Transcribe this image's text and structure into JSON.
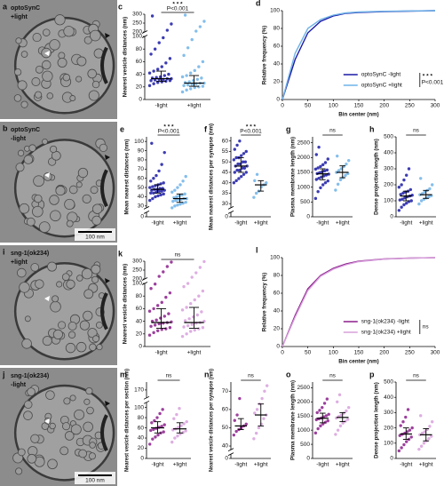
{
  "images": [
    {
      "panel": "a",
      "label": "optoSynC",
      "condition": "+light"
    },
    {
      "panel": "b",
      "label": "optoSynC",
      "condition": "-light",
      "scale_bar": "100 nm"
    },
    {
      "panel": "i",
      "label": "sng-1(ok234)",
      "condition": "+light"
    },
    {
      "panel": "j",
      "label": "sng-1(ok234)",
      "condition": "-light",
      "scale_bar": "100 nm"
    }
  ],
  "chart_data": [
    {
      "type": "dot",
      "panel": "c",
      "y_label": "Nearest vesicle distances (nm)",
      "categories": [
        "-light",
        "+light"
      ],
      "colors": [
        "#1a1aa6",
        "#6fb3e8"
      ],
      "values": [
        [
          22,
          25,
          27,
          28,
          29,
          30,
          30,
          31,
          32,
          32,
          33,
          33,
          34,
          35,
          36,
          38,
          40,
          42,
          45,
          48,
          52,
          58,
          65,
          72,
          80,
          90,
          98,
          210,
          245,
          290
        ],
        [
          12,
          15,
          17,
          19,
          20,
          21,
          22,
          23,
          24,
          25,
          26,
          26,
          27,
          28,
          30,
          32,
          34,
          36,
          38,
          42,
          46,
          52,
          60,
          70,
          82,
          95,
          205,
          230,
          260,
          295
        ]
      ],
      "median": [
        33,
        26
      ],
      "q1": [
        29,
        21
      ],
      "q3": [
        45,
        38
      ],
      "ylim": [
        0,
        300
      ],
      "ybreak": [
        100,
        200
      ],
      "yticks": [
        0,
        20,
        40,
        60,
        80,
        100,
        200,
        250,
        300
      ],
      "annotation": "P<0.001",
      "stars": "* * *"
    },
    {
      "type": "line",
      "panel": "d",
      "x_label": "Bin center (nm)",
      "y_label": "Relative frequency (%)",
      "x": [
        0,
        25,
        50,
        75,
        100,
        125,
        150,
        200,
        250,
        300
      ],
      "series": [
        {
          "name": "optoSynC -light",
          "color": "#1a1aa6",
          "values": [
            0,
            45,
            75,
            88,
            94,
            97,
            98,
            99,
            99.5,
            100
          ]
        },
        {
          "name": "optoSynC +light",
          "color": "#6fb3e8",
          "values": [
            0,
            52,
            80,
            90,
            95,
            97.5,
            98.5,
            99.3,
            99.7,
            100
          ]
        }
      ],
      "xlim": [
        0,
        300
      ],
      "xticks": [
        0,
        50,
        100,
        150,
        200,
        250,
        300
      ],
      "ylim": [
        0,
        100
      ],
      "yticks": [
        0,
        20,
        40,
        60,
        80,
        100
      ],
      "legend": "lower right",
      "annotation": "P<0.001",
      "stars": "* * *"
    },
    {
      "type": "dot",
      "panel": "e",
      "y_label": "Mean nearest distances (nm)",
      "categories": [
        "-light",
        "+light"
      ],
      "colors": [
        "#1a1aa6",
        "#6fb3e8"
      ],
      "values": [
        [
          36,
          38,
          40,
          41,
          42,
          43,
          44,
          44,
          45,
          46,
          46,
          47,
          47,
          48,
          48,
          49,
          49,
          50,
          51,
          52,
          53,
          54,
          55,
          57,
          60,
          63,
          68,
          75,
          88,
          98
        ],
        [
          28,
          30,
          31,
          32,
          33,
          34,
          35,
          36,
          37,
          37,
          38,
          38,
          39,
          40,
          41,
          42,
          43,
          45,
          47,
          50,
          53,
          57,
          62
        ]
      ],
      "median": [
        48,
        38
      ],
      "q1": [
        44,
        34
      ],
      "q3": [
        53,
        43
      ],
      "ylim": [
        0,
        105
      ],
      "ybreak": [
        0,
        28
      ],
      "yticks": [
        0,
        30,
        40,
        50,
        60,
        70,
        80,
        90,
        100
      ],
      "annotation": "P<0.001",
      "stars": "* * *"
    },
    {
      "type": "dot",
      "panel": "f",
      "y_label": "Mean nearest distances per synapse (nm)",
      "categories": [
        "-light",
        "+light"
      ],
      "colors": [
        "#1a1aa6",
        "#6fb3e8"
      ],
      "values": [
        [
          40,
          41,
          42,
          43,
          44,
          45,
          45,
          46,
          46,
          47,
          47,
          48,
          48,
          49,
          49,
          50,
          50,
          51,
          52,
          52,
          53,
          54,
          55,
          56,
          58,
          60
        ],
        [
          33,
          35,
          36,
          38,
          39,
          40,
          41,
          44
        ]
      ],
      "median": [
        48,
        39
      ],
      "q1": [
        45,
        36
      ],
      "q3": [
        52,
        41
      ],
      "ylim": [
        0,
        62
      ],
      "ybreak": [
        0,
        28
      ],
      "yticks": [
        0,
        30,
        35,
        40,
        45,
        50,
        55,
        60
      ],
      "annotation": "P<0.001",
      "stars": "* * *"
    },
    {
      "type": "dot",
      "panel": "g",
      "y_label": "Plasma membrane length (nm)",
      "categories": [
        "-light",
        "+light"
      ],
      "colors": [
        "#1a1aa6",
        "#6fb3e8"
      ],
      "values": [
        [
          620,
          850,
          980,
          1080,
          1150,
          1210,
          1260,
          1300,
          1340,
          1380,
          1410,
          1440,
          1460,
          1490,
          1520,
          1550,
          1580,
          1610,
          1650,
          1700,
          1760,
          1830,
          1950,
          2100,
          2350
        ],
        [
          900,
          1100,
          1250,
          1320,
          1400,
          1460,
          1500,
          1560,
          1620,
          1700,
          1780,
          1900,
          2050
        ]
      ],
      "median": [
        1450,
        1500
      ],
      "q1": [
        1250,
        1320
      ],
      "q3": [
        1620,
        1720
      ],
      "ylim": [
        0,
        2700
      ],
      "yticks": [
        0,
        500,
        1000,
        1500,
        2000,
        2500
      ],
      "annotation": "ns"
    },
    {
      "type": "dot",
      "panel": "h",
      "y_label": "Dense projection length (nm)",
      "categories": [
        "-light",
        "+light"
      ],
      "colors": [
        "#1a1aa6",
        "#6fb3e8"
      ],
      "values": [
        [
          40,
          60,
          75,
          85,
          95,
          100,
          105,
          110,
          118,
          125,
          130,
          135,
          140,
          148,
          155,
          160,
          170,
          185,
          200,
          230,
          260,
          300
        ],
        [
          80,
          100,
          110,
          118,
          125,
          132,
          138,
          145,
          155,
          165,
          175,
          200,
          240
        ]
      ],
      "median": [
        130,
        138
      ],
      "q1": [
        100,
        115
      ],
      "q3": [
        160,
        165
      ],
      "ylim": [
        0,
        500
      ],
      "yticks": [
        0,
        100,
        200,
        300,
        400,
        500
      ],
      "annotation": "ns"
    },
    {
      "type": "dot",
      "panel": "k",
      "y_label": "Nearest vesicle distances (nm)",
      "categories": [
        "-light",
        "+light"
      ],
      "colors": [
        "#8b1f8b",
        "#d7a0dc"
      ],
      "values": [
        [
          18,
          22,
          25,
          27,
          28,
          30,
          32,
          34,
          36,
          37,
          38,
          39,
          40,
          42,
          45,
          48,
          52,
          56,
          60,
          65,
          70,
          78,
          85,
          92,
          99,
          215,
          240,
          270,
          295
        ],
        [
          16,
          20,
          24,
          26,
          28,
          30,
          31,
          33,
          35,
          37,
          38,
          40,
          41,
          44,
          47,
          50,
          55,
          58,
          62,
          68,
          74,
          80,
          88,
          95,
          100,
          210,
          235,
          265,
          298
        ]
      ],
      "median": [
        38,
        38
      ],
      "q1": [
        29,
        29
      ],
      "q3": [
        60,
        62
      ],
      "ylim": [
        0,
        300
      ],
      "ybreak": [
        100,
        200
      ],
      "yticks": [
        0,
        20,
        40,
        60,
        80,
        100,
        200,
        250,
        300
      ],
      "annotation": "ns"
    },
    {
      "type": "line",
      "panel": "l",
      "x_label": "Bin center (nm)",
      "y_label": "Relative frequency (%)",
      "x": [
        0,
        25,
        50,
        75,
        100,
        125,
        150,
        200,
        250,
        300
      ],
      "series": [
        {
          "name": "sng-1(ok234) -light",
          "color": "#8b1f8b",
          "values": [
            0,
            35,
            65,
            80,
            88,
            93,
            96,
            98.5,
            99.5,
            100
          ]
        },
        {
          "name": "sng-1(ok234) +light",
          "color": "#d7a0dc",
          "values": [
            0,
            33,
            63,
            79,
            87,
            92,
            95.5,
            98.3,
            99.4,
            100
          ]
        }
      ],
      "xlim": [
        0,
        300
      ],
      "xticks": [
        0,
        50,
        100,
        150,
        200,
        250,
        300
      ],
      "ylim": [
        0,
        100
      ],
      "yticks": [
        0,
        20,
        40,
        60,
        80,
        100
      ],
      "legend": "lower right",
      "annotation": "ns"
    },
    {
      "type": "dot",
      "panel": "m",
      "y_label": "Nearest vesicle distances per section (nm)",
      "categories": [
        "-light",
        "+light"
      ],
      "colors": [
        "#8b1f8b",
        "#d7a0dc"
      ],
      "values": [
        [
          28,
          38,
          42,
          46,
          50,
          52,
          55,
          57,
          59,
          61,
          63,
          66,
          70,
          74,
          80,
          88,
          96
        ],
        [
          32,
          40,
          44,
          48,
          51,
          54,
          56,
          58,
          61,
          64,
          68,
          72,
          78,
          86,
          98
        ]
      ],
      "median": [
        60,
        58
      ],
      "q1": [
        50,
        50
      ],
      "q3": [
        72,
        70
      ],
      "ylim": [
        0,
        180
      ],
      "ybreak": [
        110,
        160
      ],
      "yticks": [
        0,
        20,
        40,
        60,
        80,
        100,
        170
      ],
      "annotation": "ns"
    },
    {
      "type": "dot",
      "panel": "n",
      "y_label": "Nearest vesicle distances per synapse (nm)",
      "categories": [
        "-light",
        "+light"
      ],
      "colors": [
        "#8b1f8b",
        "#d7a0dc"
      ],
      "values": [
        [
          46,
          48,
          49,
          50,
          51,
          52,
          54,
          57,
          66
        ],
        [
          44,
          47,
          50,
          52,
          55,
          57,
          58,
          60,
          63,
          66,
          70,
          73
        ]
      ],
      "median": [
        51,
        57
      ],
      "q1": [
        49,
        51
      ],
      "q3": [
        55,
        63
      ],
      "ylim": [
        0,
        75
      ],
      "ybreak": [
        0,
        38
      ],
      "yticks": [
        0,
        40,
        50,
        60,
        70
      ],
      "annotation": "ns"
    },
    {
      "type": "dot",
      "panel": "o",
      "y_label": "Plasma membrane length (nm)",
      "categories": [
        "-light",
        "+light"
      ],
      "colors": [
        "#8b1f8b",
        "#d7a0dc"
      ],
      "values": [
        [
          900,
          1050,
          1150,
          1220,
          1280,
          1330,
          1370,
          1400,
          1430,
          1470,
          1510,
          1560,
          1620,
          1700,
          1800,
          1950,
          2100
        ],
        [
          850,
          1000,
          1150,
          1250,
          1320,
          1380,
          1430,
          1480,
          1530,
          1600,
          1680,
          1800,
          2000,
          2250
        ]
      ],
      "median": [
        1420,
        1450
      ],
      "q1": [
        1260,
        1300
      ],
      "q3": [
        1600,
        1620
      ],
      "ylim": [
        0,
        2700
      ],
      "yticks": [
        0,
        500,
        1000,
        1500,
        2000,
        2500
      ],
      "annotation": "ns"
    },
    {
      "type": "dot",
      "panel": "p",
      "y_label": "Dense projection length (nm)",
      "categories": [
        "-light",
        "+light"
      ],
      "colors": [
        "#8b1f8b",
        "#d7a0dc"
      ],
      "values": [
        [
          50,
          70,
          90,
          110,
          125,
          140,
          150,
          158,
          165,
          175,
          185,
          200,
          215,
          240,
          270,
          320
        ],
        [
          60,
          80,
          100,
          115,
          130,
          145,
          155,
          165,
          175,
          190,
          210,
          240,
          280
        ]
      ],
      "median": [
        160,
        155
      ],
      "q1": [
        125,
        115
      ],
      "q3": [
        200,
        195
      ],
      "ylim": [
        0,
        500
      ],
      "yticks": [
        0,
        100,
        200,
        300,
        400,
        500
      ],
      "annotation": "ns"
    }
  ]
}
